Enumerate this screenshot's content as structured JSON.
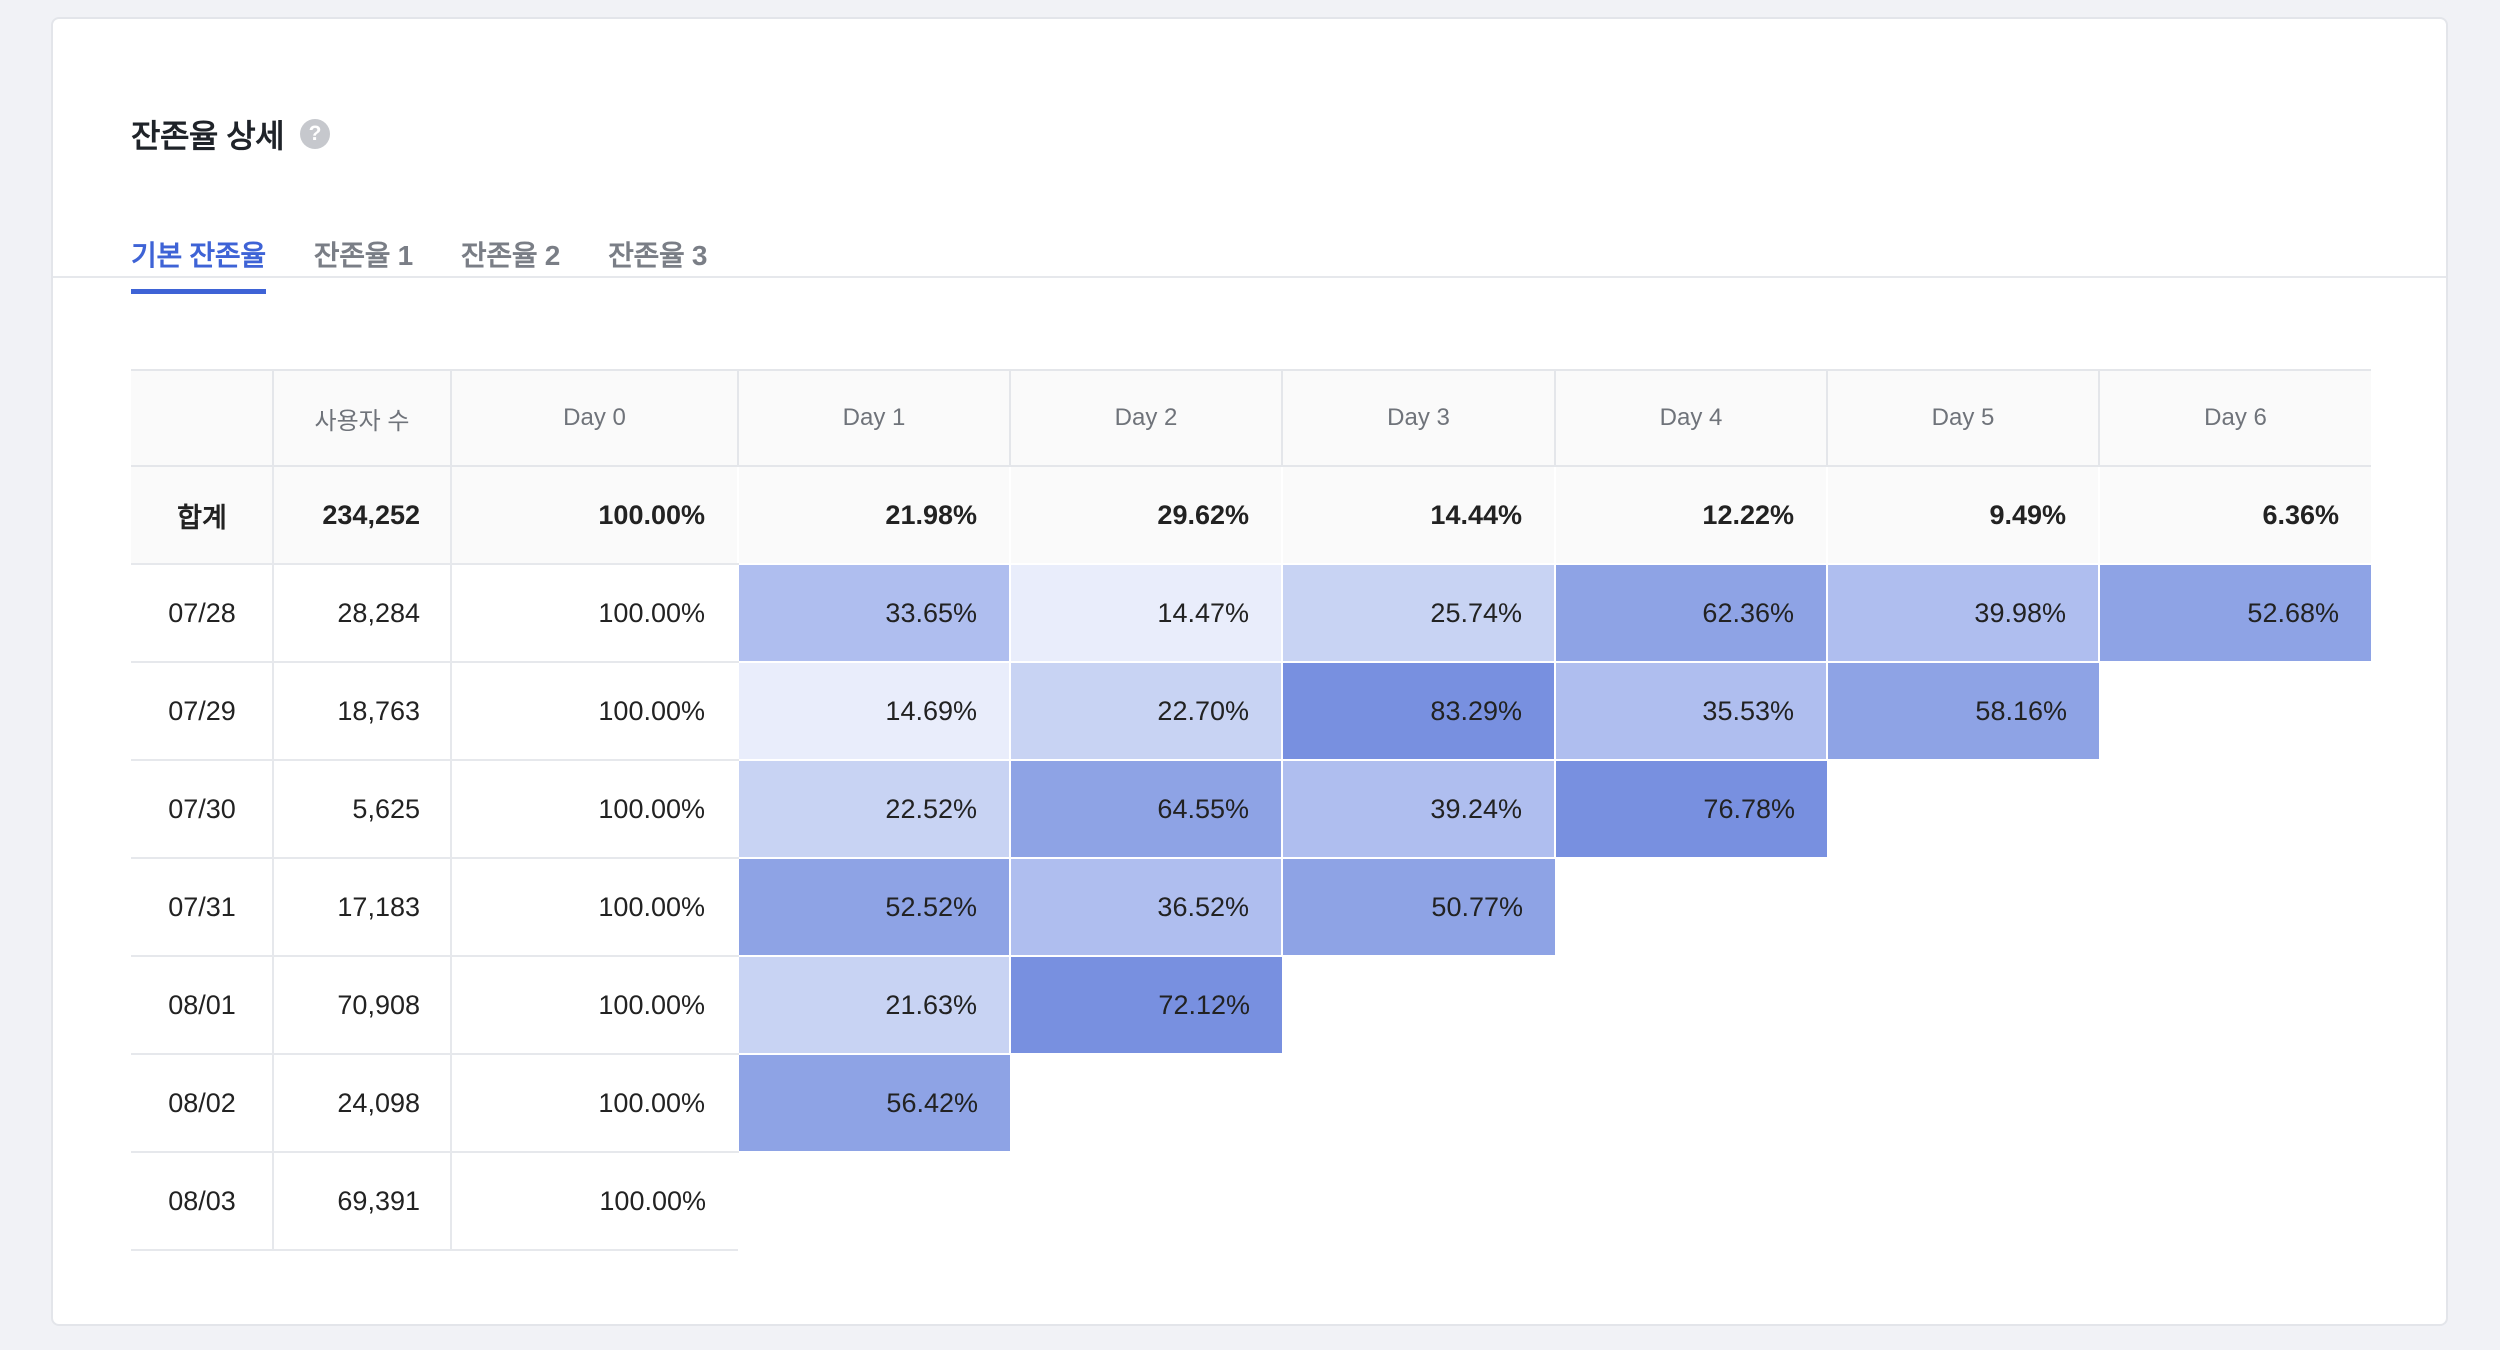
{
  "header": {
    "title": "잔존율 상세",
    "help_icon": "?"
  },
  "tabs": [
    {
      "label": "기본 잔존율",
      "active": true
    },
    {
      "label": "잔존율 1",
      "active": false
    },
    {
      "label": "잔존율 2",
      "active": false
    },
    {
      "label": "잔존율 3",
      "active": false
    }
  ],
  "colors": {
    "accent": "#3e63d6",
    "heat_levels": [
      "#e9edfb",
      "#c8d3f3",
      "#afbeef",
      "#8ea3e5",
      "#7890e0"
    ]
  },
  "table": {
    "columns": [
      "",
      "사용자 수",
      "Day 0",
      "Day 1",
      "Day 2",
      "Day 3",
      "Day 4",
      "Day 5",
      "Day 6"
    ],
    "total": {
      "label": "합계",
      "users": "234,252",
      "days": [
        "100.00%",
        "21.98%",
        "29.62%",
        "14.44%",
        "12.22%",
        "9.49%",
        "6.36%"
      ]
    },
    "rows": [
      {
        "date": "07/28",
        "users": "28,284",
        "days": [
          "100.00%",
          "33.65%",
          "14.47%",
          "25.74%",
          "62.36%",
          "39.98%",
          "52.68%"
        ]
      },
      {
        "date": "07/29",
        "users": "18,763",
        "days": [
          "100.00%",
          "14.69%",
          "22.70%",
          "83.29%",
          "35.53%",
          "58.16%"
        ]
      },
      {
        "date": "07/30",
        "users": "5,625",
        "days": [
          "100.00%",
          "22.52%",
          "64.55%",
          "39.24%",
          "76.78%"
        ]
      },
      {
        "date": "07/31",
        "users": "17,183",
        "days": [
          "100.00%",
          "52.52%",
          "36.52%",
          "50.77%"
        ]
      },
      {
        "date": "08/01",
        "users": "70,908",
        "days": [
          "100.00%",
          "21.63%",
          "72.12%"
        ]
      },
      {
        "date": "08/02",
        "users": "24,098",
        "days": [
          "100.00%",
          "56.42%"
        ]
      },
      {
        "date": "08/03",
        "users": "69,391",
        "days": [
          "100.00%"
        ]
      }
    ]
  }
}
